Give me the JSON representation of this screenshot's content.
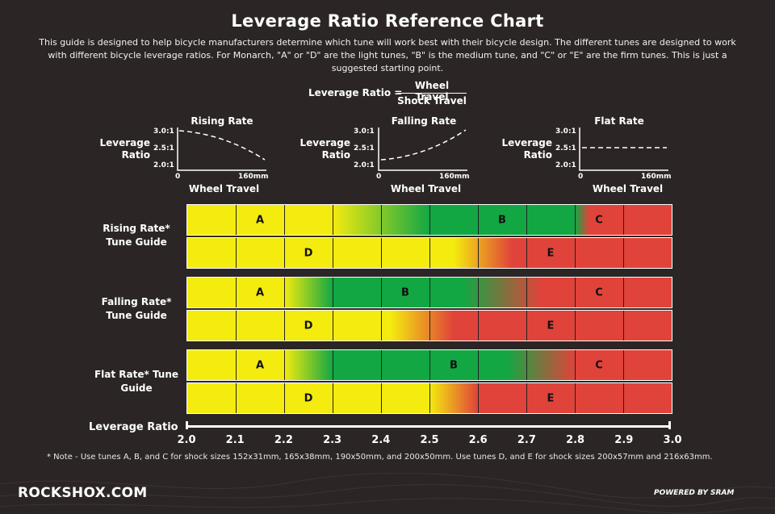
{
  "title": "Leverage Ratio Reference Chart",
  "intro": "This guide is designed to help bicycle manufacturers determine which tune will work best with their bicycle design. The different tunes are designed to work with different bicycle leverage ratios. For Monarch, \"A\" or \"D\" are the light tunes, \"B\" is the medium tune, and \"C\" or \"E\" are the firm tunes. This is just a suggested starting point.",
  "formula": {
    "label": "Leverage Ratio =",
    "numerator": "Wheel Travel",
    "denominator": "Shock Travel"
  },
  "mini_charts": [
    {
      "title": "Rising Rate",
      "y_label": "Leverage Ratio",
      "x_label": "Wheel Travel",
      "y_ticks": [
        "3.0:1",
        "2.5:1",
        "2.0:1"
      ],
      "x_ticks": [
        "0",
        "160mm"
      ]
    },
    {
      "title": "Falling Rate",
      "y_label": "Leverage Ratio",
      "x_label": "Wheel Travel",
      "y_ticks": [
        "3.0:1",
        "2.5:1",
        "2.0:1"
      ],
      "x_ticks": [
        "0",
        "160mm"
      ]
    },
    {
      "title": "Flat Rate",
      "y_label": "Leverage Ratio",
      "x_label": "Wheel Travel",
      "y_ticks": [
        "3.0:1",
        "2.5:1",
        "2.0:1"
      ],
      "x_ticks": [
        "0",
        "160mm"
      ]
    }
  ],
  "colors": {
    "light": "#f4eb0f",
    "medium": "#13a744",
    "firm": "#e0433a",
    "background": "#2b2625"
  },
  "chart_data": {
    "type": "table",
    "xlabel": "Leverage Ratio",
    "xlim": [
      2.0,
      3.0
    ],
    "x_ticks": [
      "2.0",
      "2.1",
      "2.2",
      "2.3",
      "2.4",
      "2.5",
      "2.6",
      "2.7",
      "2.8",
      "2.9",
      "3.0"
    ],
    "groups": [
      {
        "label": "Rising Rate* Tune Guide",
        "bars": [
          {
            "stops": [
              [
                "light",
                2.0
              ],
              [
                "light",
                2.3
              ],
              [
                "medium",
                2.5
              ],
              [
                "medium",
                2.8
              ],
              [
                "firm",
                2.83
              ],
              [
                "firm",
                3.0
              ]
            ],
            "tunes": [
              {
                "name": "A",
                "at": 2.15
              },
              {
                "name": "B",
                "at": 2.65
              },
              {
                "name": "C",
                "at": 2.85
              }
            ]
          },
          {
            "stops": [
              [
                "light",
                2.0
              ],
              [
                "light",
                2.55
              ],
              [
                "firm",
                2.67
              ],
              [
                "firm",
                3.0
              ]
            ],
            "tunes": [
              {
                "name": "D",
                "at": 2.25
              },
              {
                "name": "E",
                "at": 2.75
              }
            ]
          }
        ]
      },
      {
        "label": "Falling Rate* Tune Guide",
        "bars": [
          {
            "stops": [
              [
                "light",
                2.0
              ],
              [
                "light",
                2.2
              ],
              [
                "medium",
                2.3
              ],
              [
                "medium",
                2.57
              ],
              [
                "firm",
                2.73
              ],
              [
                "firm",
                3.0
              ]
            ],
            "tunes": [
              {
                "name": "A",
                "at": 2.15
              },
              {
                "name": "B",
                "at": 2.45
              },
              {
                "name": "C",
                "at": 2.85
              }
            ]
          },
          {
            "stops": [
              [
                "light",
                2.0
              ],
              [
                "light",
                2.42
              ],
              [
                "firm",
                2.55
              ],
              [
                "firm",
                3.0
              ]
            ],
            "tunes": [
              {
                "name": "D",
                "at": 2.25
              },
              {
                "name": "E",
                "at": 2.75
              }
            ]
          }
        ]
      },
      {
        "label": "Flat Rate* Tune Guide",
        "bars": [
          {
            "stops": [
              [
                "light",
                2.0
              ],
              [
                "light",
                2.2
              ],
              [
                "medium",
                2.3
              ],
              [
                "medium",
                2.66
              ],
              [
                "firm",
                2.8
              ],
              [
                "firm",
                3.0
              ]
            ],
            "tunes": [
              {
                "name": "A",
                "at": 2.15
              },
              {
                "name": "B",
                "at": 2.55
              },
              {
                "name": "C",
                "at": 2.85
              }
            ]
          },
          {
            "stops": [
              [
                "light",
                2.0
              ],
              [
                "light",
                2.5
              ],
              [
                "firm",
                2.6
              ],
              [
                "firm",
                3.0
              ]
            ],
            "tunes": [
              {
                "name": "D",
                "at": 2.25
              },
              {
                "name": "E",
                "at": 2.75
              }
            ]
          }
        ]
      }
    ]
  },
  "note": "* Note - Use tunes A, B, and C for shock sizes 152x31mm, 165x38mm, 190x50mm, and 200x50mm.  Use tunes D, and E for shock sizes 200x57mm and 216x63mm.",
  "footer": {
    "site": "ROCKSHOX.COM",
    "powered": "POWERED BY SRAM"
  }
}
